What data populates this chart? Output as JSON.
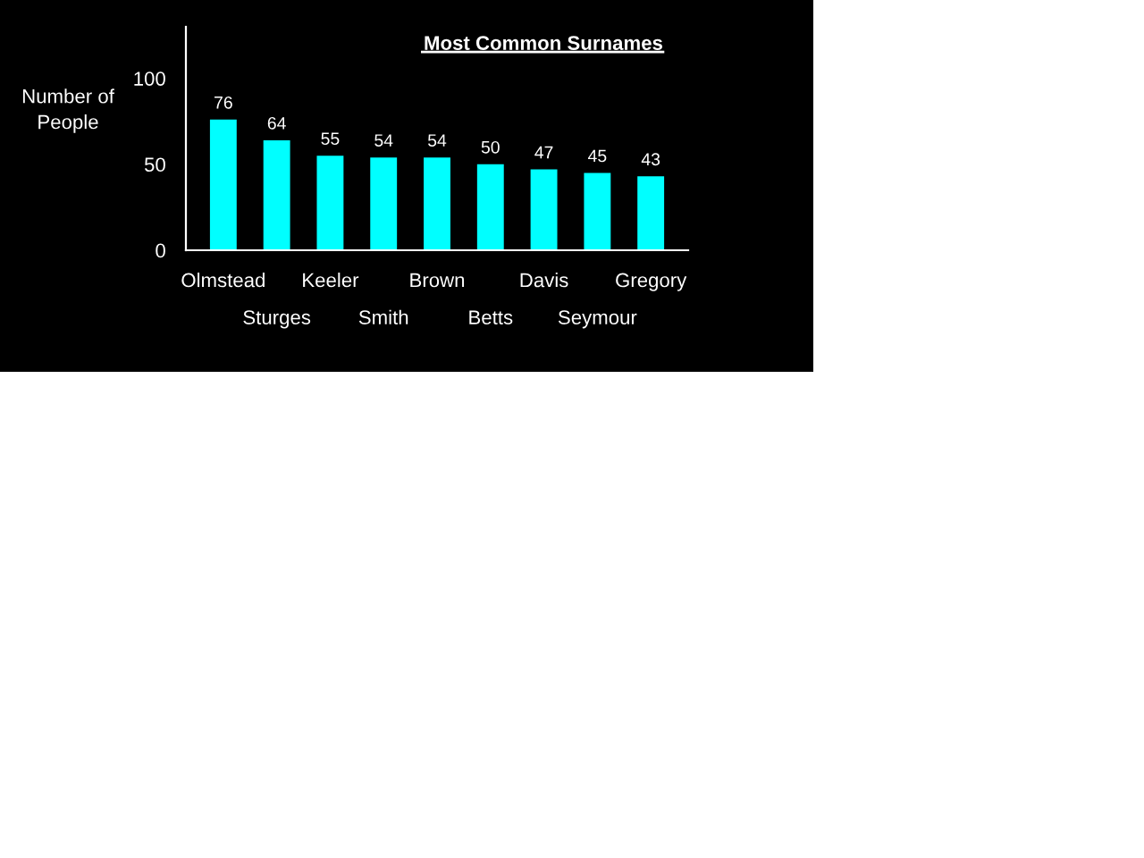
{
  "chart_data": {
    "type": "bar",
    "title": "Most Common Surnames",
    "ylabel": "Number of\nPeople",
    "categories": [
      "Olmstead",
      "Sturges",
      "Keeler",
      "Smith",
      "Brown",
      "Betts",
      "Davis",
      "Seymour",
      "Gregory"
    ],
    "values": [
      76,
      64,
      55,
      54,
      54,
      50,
      47,
      45,
      43
    ],
    "color": "#00ffff",
    "data_labels": true,
    "ylim": [
      0,
      130
    ],
    "yticks": [
      0,
      50,
      100
    ],
    "grid": false
  }
}
